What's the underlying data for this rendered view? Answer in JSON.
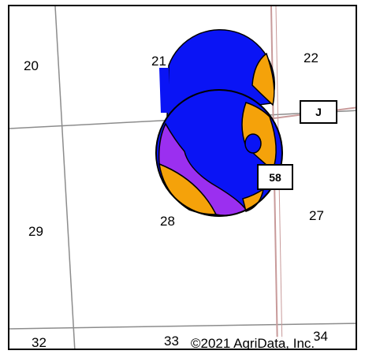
{
  "map": {
    "section_numbers": [
      "20",
      "21",
      "22",
      "27",
      "28",
      "29",
      "32",
      "33",
      "34"
    ],
    "route_shields": [
      "J",
      "58"
    ],
    "copyright": "©2021 AgriData, Inc."
  },
  "colors": {
    "primary_zone": "#0a14f5",
    "secondary_zone": "#f5a20a",
    "tertiary_zone": "#9b2ff0",
    "section_line": "#8c8c8c",
    "road_line": "#c89a9a"
  }
}
